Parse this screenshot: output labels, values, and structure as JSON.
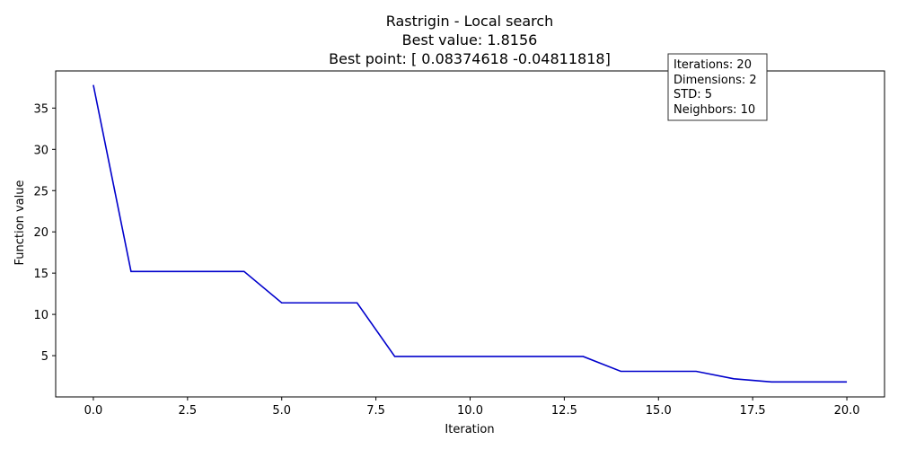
{
  "chart_data": {
    "type": "line",
    "title_lines": [
      "Rastrigin - Local search",
      "Best value: 1.8156",
      "Best point: [ 0.08374618 -0.04811818]"
    ],
    "xlabel": "Iteration",
    "ylabel": "Function value",
    "xlim": [
      -1.0,
      21.0
    ],
    "ylim": [
      0.0,
      39.5
    ],
    "x_ticks": [
      0.0,
      2.5,
      5.0,
      7.5,
      10.0,
      12.5,
      15.0,
      17.5,
      20.0
    ],
    "x_tick_labels": [
      "0.0",
      "2.5",
      "5.0",
      "7.5",
      "10.0",
      "12.5",
      "15.0",
      "17.5",
      "20.0"
    ],
    "y_ticks": [
      5,
      10,
      15,
      20,
      25,
      30,
      35
    ],
    "y_tick_labels": [
      "5",
      "10",
      "15",
      "20",
      "25",
      "30",
      "35"
    ],
    "grid": false,
    "series": [
      {
        "color": "#0000cc",
        "x": [
          0,
          1,
          2,
          3,
          4,
          5,
          6,
          7,
          8,
          9,
          10,
          11,
          12,
          13,
          14,
          15,
          16,
          17,
          18,
          19,
          20
        ],
        "y": [
          37.8,
          15.2,
          15.2,
          15.2,
          15.2,
          11.4,
          11.4,
          11.4,
          4.9,
          4.9,
          4.9,
          4.9,
          4.9,
          4.9,
          3.1,
          3.1,
          3.1,
          2.2,
          1.8156,
          1.8156,
          1.8156
        ]
      }
    ],
    "info_box": {
      "lines": [
        "Iterations: 20",
        "Dimensions: 2",
        "STD: 5",
        "Neighbors: 10"
      ],
      "placement": "top-right"
    }
  }
}
